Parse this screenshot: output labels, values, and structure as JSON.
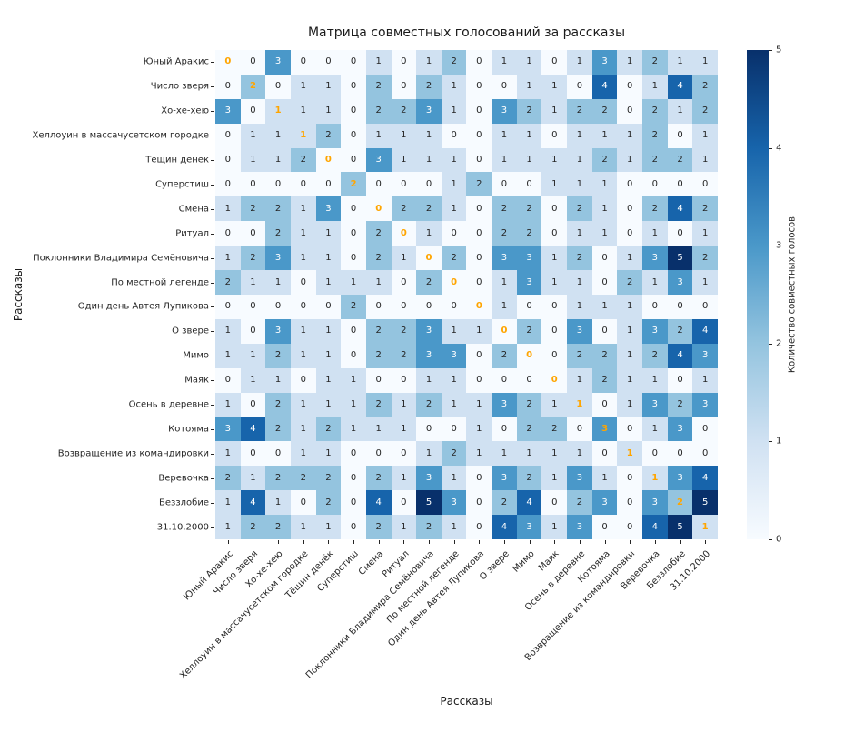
{
  "chart_data": {
    "type": "heatmap",
    "title": "Матрица совместных голосований за рассказы",
    "xlabel": "Рассказы",
    "ylabel": "Рассказы",
    "colorbar_label": "Количество совместных голосов",
    "colorbar_ticks": [
      0,
      1,
      2,
      3,
      4,
      5
    ],
    "vmin": 0,
    "vmax": 5,
    "colormap": "Blues",
    "grid": false,
    "labels": [
      "Юный Аракис",
      "Число зверя",
      "Хо-хе-хею",
      "Хеллоуин в массачусетском городке",
      "Тёщин денёк",
      "Суперстиш",
      "Смена",
      "Ритуал",
      "Поклонники Владимира Семёновича",
      "По местной легенде",
      "Один день Автея Лупикова",
      "О звере",
      "Мимо",
      "Маяк",
      "Осень в деревне",
      "Котояма",
      "Возвращение из командировки",
      "Веревочка",
      "Беззлобие",
      "31.10.2000"
    ],
    "matrix": [
      [
        0,
        0,
        3,
        0,
        0,
        0,
        1,
        0,
        1,
        2,
        0,
        1,
        1,
        0,
        1,
        3,
        1,
        2,
        1,
        1
      ],
      [
        0,
        2,
        0,
        1,
        1,
        0,
        2,
        0,
        2,
        1,
        0,
        0,
        1,
        1,
        0,
        4,
        0,
        1,
        4,
        2
      ],
      [
        3,
        0,
        1,
        1,
        1,
        0,
        2,
        2,
        3,
        1,
        0,
        3,
        2,
        1,
        2,
        2,
        0,
        2,
        1,
        2
      ],
      [
        0,
        1,
        1,
        1,
        2,
        0,
        1,
        1,
        1,
        0,
        0,
        1,
        1,
        0,
        1,
        1,
        1,
        2,
        0,
        1
      ],
      [
        0,
        1,
        1,
        2,
        0,
        0,
        3,
        1,
        1,
        1,
        0,
        1,
        1,
        1,
        1,
        2,
        1,
        2,
        2,
        1
      ],
      [
        0,
        0,
        0,
        0,
        0,
        2,
        0,
        0,
        0,
        1,
        2,
        0,
        0,
        1,
        1,
        1,
        0,
        0,
        0,
        0
      ],
      [
        1,
        2,
        2,
        1,
        3,
        0,
        0,
        2,
        2,
        1,
        0,
        2,
        2,
        0,
        2,
        1,
        0,
        2,
        4,
        2
      ],
      [
        0,
        0,
        2,
        1,
        1,
        0,
        2,
        0,
        1,
        0,
        0,
        2,
        2,
        0,
        1,
        1,
        0,
        1,
        0,
        1
      ],
      [
        1,
        2,
        3,
        1,
        1,
        0,
        2,
        1,
        0,
        2,
        0,
        3,
        3,
        1,
        2,
        0,
        1,
        3,
        5,
        2
      ],
      [
        2,
        1,
        1,
        0,
        1,
        1,
        1,
        0,
        2,
        0,
        0,
        1,
        3,
        1,
        1,
        0,
        2,
        1,
        3,
        1
      ],
      [
        0,
        0,
        0,
        0,
        0,
        2,
        0,
        0,
        0,
        0,
        0,
        1,
        0,
        0,
        1,
        1,
        1,
        0,
        0,
        0
      ],
      [
        1,
        0,
        3,
        1,
        1,
        0,
        2,
        2,
        3,
        1,
        1,
        0,
        2,
        0,
        3,
        0,
        1,
        3,
        2,
        4
      ],
      [
        1,
        1,
        2,
        1,
        1,
        0,
        2,
        2,
        3,
        3,
        0,
        2,
        0,
        0,
        2,
        2,
        1,
        2,
        4,
        3
      ],
      [
        0,
        1,
        1,
        0,
        1,
        1,
        0,
        0,
        1,
        1,
        0,
        0,
        0,
        0,
        1,
        2,
        1,
        1,
        0,
        1
      ],
      [
        1,
        0,
        2,
        1,
        1,
        1,
        2,
        1,
        2,
        1,
        1,
        3,
        2,
        1,
        1,
        0,
        1,
        3,
        2,
        3
      ],
      [
        3,
        4,
        2,
        1,
        2,
        1,
        1,
        1,
        0,
        0,
        1,
        0,
        2,
        2,
        0,
        3,
        0,
        1,
        3,
        0
      ],
      [
        1,
        0,
        0,
        1,
        1,
        0,
        0,
        0,
        1,
        2,
        1,
        1,
        1,
        1,
        1,
        0,
        1,
        0,
        0,
        0
      ],
      [
        2,
        1,
        2,
        2,
        2,
        0,
        2,
        1,
        3,
        1,
        0,
        3,
        2,
        1,
        3,
        1,
        0,
        1,
        3,
        4
      ],
      [
        1,
        4,
        1,
        0,
        2,
        0,
        4,
        0,
        5,
        3,
        0,
        2,
        4,
        0,
        2,
        3,
        0,
        3,
        2,
        5
      ],
      [
        1,
        2,
        2,
        1,
        1,
        0,
        2,
        1,
        2,
        1,
        0,
        4,
        3,
        1,
        3,
        0,
        0,
        4,
        5,
        1
      ]
    ],
    "colors": {
      "scale": [
        "#f7fbff",
        "#d0e1f2",
        "#94c4df",
        "#4a98c9",
        "#1764ab",
        "#08306b"
      ],
      "diagonal_text": "#ffa500",
      "dark_text": "#262626",
      "light_text": "#ffffff"
    }
  }
}
